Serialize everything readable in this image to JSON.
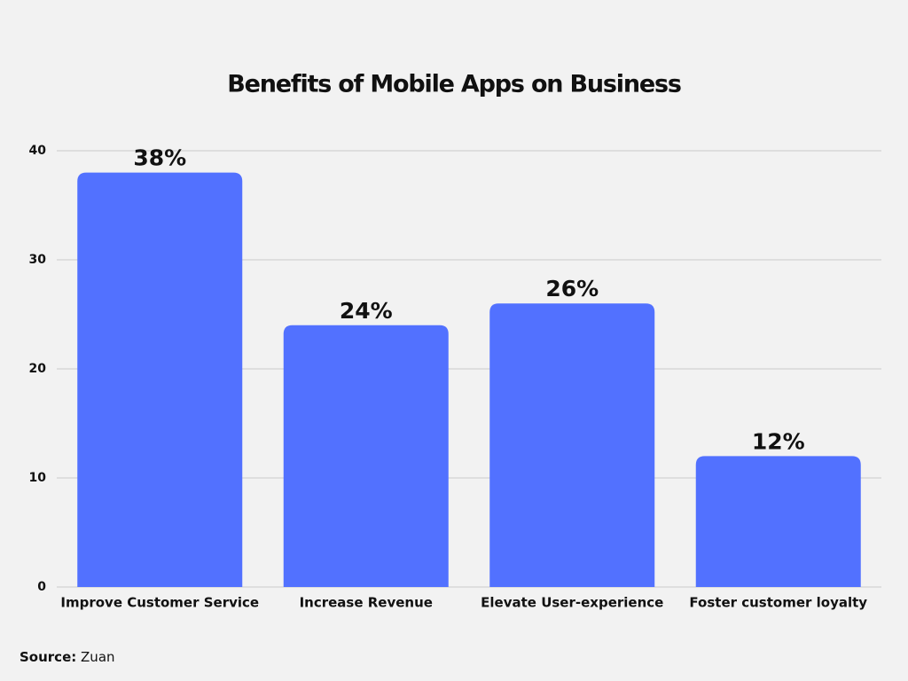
{
  "chart_data": {
    "type": "bar",
    "title": "Benefits of Mobile Apps on Business",
    "categories": [
      "Improve Customer Service",
      "Increase Revenue",
      "Elevate User-experience",
      "Foster customer loyalty"
    ],
    "values": [
      38,
      24,
      26,
      12
    ],
    "value_labels": [
      "38%",
      "24%",
      "26%",
      "12%"
    ],
    "color": "#5271ff",
    "ylim": [
      0,
      40
    ],
    "yticks": [
      0,
      10,
      20,
      30,
      40
    ],
    "grid": true,
    "source_label": "Source:",
    "source": "Zuan"
  }
}
